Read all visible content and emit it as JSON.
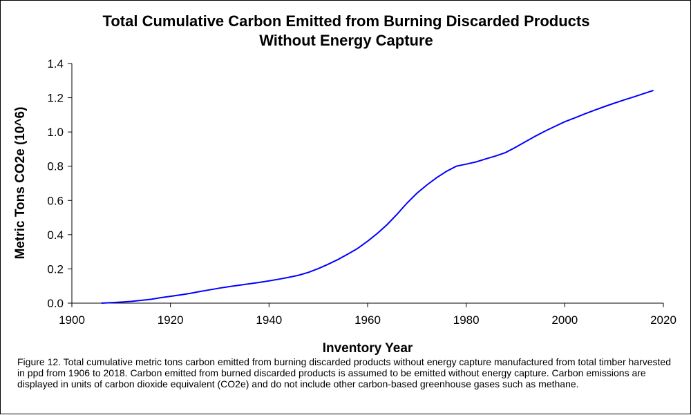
{
  "chart_data": {
    "type": "line",
    "title": "Total Cumulative Carbon Emitted from Burning Discarded Products",
    "subtitle": "Without Energy Capture",
    "xlabel": "Inventory Year",
    "ylabel": "Metric Tons CO2e (10^6)",
    "xlim": [
      1900,
      2020
    ],
    "ylim": [
      0,
      1.4
    ],
    "x_ticks": [
      "1900",
      "1920",
      "1940",
      "1960",
      "1980",
      "2000",
      "2020"
    ],
    "y_ticks": [
      "0.0",
      "0.2",
      "0.4",
      "0.6",
      "0.8",
      "1.0",
      "1.2",
      "1.4"
    ],
    "grid": false,
    "line_color": "#0000ff",
    "series": [
      {
        "x": [
          1906,
          1908,
          1910,
          1912,
          1914,
          1916,
          1918,
          1920,
          1922,
          1924,
          1926,
          1928,
          1930,
          1932,
          1934,
          1936,
          1938,
          1940,
          1942,
          1944,
          1946,
          1948,
          1950,
          1952,
          1954,
          1956,
          1958,
          1960,
          1962,
          1964,
          1966,
          1968,
          1970,
          1972,
          1974,
          1976,
          1978,
          1980,
          1982,
          1984,
          1986,
          1988,
          1990,
          1992,
          1994,
          1996,
          1998,
          2000,
          2002,
          2004,
          2006,
          2008,
          2010,
          2012,
          2014,
          2016,
          2018
        ],
        "y": [
          0.0,
          0.003,
          0.006,
          0.01,
          0.016,
          0.022,
          0.032,
          0.04,
          0.048,
          0.057,
          0.068,
          0.078,
          0.088,
          0.097,
          0.105,
          0.113,
          0.121,
          0.13,
          0.14,
          0.151,
          0.163,
          0.18,
          0.202,
          0.227,
          0.255,
          0.287,
          0.32,
          0.362,
          0.408,
          0.46,
          0.52,
          0.585,
          0.642,
          0.69,
          0.733,
          0.77,
          0.8,
          0.812,
          0.825,
          0.843,
          0.86,
          0.88,
          0.91,
          0.943,
          0.975,
          1.005,
          1.033,
          1.06,
          1.082,
          1.105,
          1.127,
          1.148,
          1.168,
          1.187,
          1.205,
          1.224,
          1.243
        ]
      }
    ]
  },
  "caption": "Figure 12. Total cumulative metric tons carbon emitted from burning discarded products without energy capture manufactured from total timber harvested in ppd from 1906 to 2018. Carbon emitted from burned discarded products is assumed to be emitted without energy capture. Carbon emissions are displayed in units of carbon dioxide equivalent (CO2e) and do not include other carbon-based greenhouse gases such as methane."
}
